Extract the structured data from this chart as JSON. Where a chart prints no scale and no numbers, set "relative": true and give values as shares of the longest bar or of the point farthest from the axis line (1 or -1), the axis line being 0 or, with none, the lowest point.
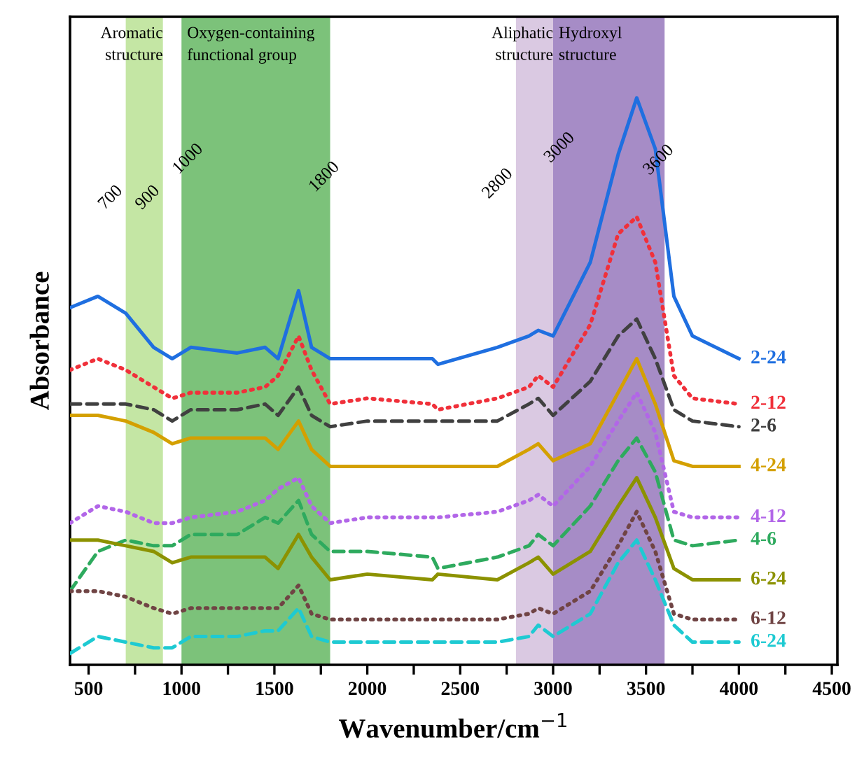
{
  "chart_data": {
    "type": "line",
    "relative": true,
    "xlabel": "Wavenumber/cm$^{−1}$",
    "ylabel": "Absorbance",
    "xlim": [
      400,
      4530
    ],
    "xticks": [
      500,
      {
        "value": 750,
        "label": null
      },
      1000,
      {
        "value": 1250,
        "label": null
      },
      1500,
      {
        "value": 1750,
        "label": null
      },
      2000,
      {
        "value": 2250,
        "label": null
      },
      2500,
      {
        "value": 2750,
        "label": null
      },
      3000,
      {
        "value": 3250,
        "label": null
      },
      3500,
      {
        "value": 3750,
        "label": null
      },
      4000,
      {
        "value": 4250,
        "label": null
      },
      4500
    ],
    "tick_labels": "x",
    "grid": false,
    "legend": false,
    "x": [
      400,
      550,
      700,
      850,
      950,
      1050,
      1300,
      1450,
      1520,
      1630,
      1700,
      1800,
      2000,
      2350,
      2380,
      2700,
      2870,
      2920,
      3000,
      3200,
      3350,
      3450,
      3550,
      3650,
      3750,
      4000
    ],
    "series": [
      {
        "name": "2-24",
        "color": "#1f6fe0",
        "line_style": "solid",
        "values": [
          0.63,
          0.65,
          0.62,
          0.56,
          0.54,
          0.56,
          0.55,
          0.56,
          0.54,
          0.66,
          0.56,
          0.54,
          0.54,
          0.54,
          0.53,
          0.56,
          0.58,
          0.59,
          0.58,
          0.71,
          0.9,
          1.0,
          0.91,
          0.65,
          0.58,
          0.54
        ]
      },
      {
        "name": "2-12",
        "color": "#f0303a",
        "line_style": "dotted",
        "values": [
          0.52,
          0.54,
          0.52,
          0.49,
          0.47,
          0.48,
          0.48,
          0.49,
          0.51,
          0.58,
          0.52,
          0.46,
          0.47,
          0.46,
          0.45,
          0.47,
          0.49,
          0.51,
          0.49,
          0.6,
          0.76,
          0.79,
          0.71,
          0.51,
          0.47,
          0.46
        ]
      },
      {
        "name": "2-6",
        "color": "#404040",
        "line_style": "dashed",
        "values": [
          0.46,
          0.46,
          0.46,
          0.45,
          0.43,
          0.45,
          0.45,
          0.46,
          0.44,
          0.49,
          0.44,
          0.42,
          0.43,
          0.43,
          0.43,
          0.43,
          0.46,
          0.47,
          0.44,
          0.5,
          0.58,
          0.61,
          0.54,
          0.45,
          0.43,
          0.42
        ]
      },
      {
        "name": "4-24",
        "color": "#d4a000",
        "line_style": "solid",
        "values": [
          0.44,
          0.44,
          0.43,
          0.41,
          0.39,
          0.4,
          0.4,
          0.4,
          0.38,
          0.43,
          0.38,
          0.35,
          0.35,
          0.35,
          0.35,
          0.35,
          0.38,
          0.39,
          0.36,
          0.39,
          0.48,
          0.54,
          0.46,
          0.36,
          0.35,
          0.35
        ]
      },
      {
        "name": "4-12",
        "color": "#b266e8",
        "line_style": "dotted",
        "values": [
          0.25,
          0.28,
          0.27,
          0.25,
          0.25,
          0.26,
          0.27,
          0.29,
          0.31,
          0.33,
          0.28,
          0.25,
          0.26,
          0.26,
          0.26,
          0.27,
          0.29,
          0.3,
          0.28,
          0.35,
          0.43,
          0.48,
          0.41,
          0.27,
          0.26,
          0.26
        ]
      },
      {
        "name": "4-6",
        "color": "#2eaa5e",
        "line_style": "dashed",
        "values": [
          0.13,
          0.2,
          0.22,
          0.21,
          0.21,
          0.23,
          0.23,
          0.26,
          0.25,
          0.29,
          0.23,
          0.2,
          0.2,
          0.19,
          0.17,
          0.19,
          0.21,
          0.23,
          0.21,
          0.28,
          0.36,
          0.4,
          0.34,
          0.22,
          0.21,
          0.22
        ]
      },
      {
        "name": "6-24",
        "color": "#8c9200",
        "line_style": "solid",
        "values": [
          0.22,
          0.22,
          0.21,
          0.2,
          0.18,
          0.19,
          0.19,
          0.19,
          0.17,
          0.23,
          0.19,
          0.15,
          0.16,
          0.15,
          0.16,
          0.15,
          0.18,
          0.19,
          0.16,
          0.2,
          0.28,
          0.33,
          0.26,
          0.17,
          0.15,
          0.15
        ]
      },
      {
        "name": "6-12",
        "color": "#704444",
        "line_style": "dotted",
        "values": [
          0.13,
          0.13,
          0.12,
          0.1,
          0.09,
          0.1,
          0.1,
          0.1,
          0.1,
          0.14,
          0.09,
          0.08,
          0.08,
          0.08,
          0.08,
          0.08,
          0.09,
          0.1,
          0.09,
          0.13,
          0.21,
          0.27,
          0.2,
          0.09,
          0.08,
          0.08
        ]
      },
      {
        "name": "6-24",
        "color": "#1ecad2",
        "line_style": "dashed",
        "values": [
          0.02,
          0.05,
          0.04,
          0.03,
          0.03,
          0.05,
          0.05,
          0.06,
          0.06,
          0.1,
          0.05,
          0.04,
          0.04,
          0.04,
          0.04,
          0.04,
          0.05,
          0.07,
          0.05,
          0.09,
          0.18,
          0.22,
          0.15,
          0.07,
          0.04,
          0.04
        ]
      }
    ],
    "bands": [
      {
        "axis": "x",
        "from": 700,
        "to": 900,
        "label": "Aromatic structure",
        "color": "#c4e6a4"
      },
      {
        "axis": "x",
        "from": 1000,
        "to": 1800,
        "label": "Oxygen-containing functional group",
        "color": "#7cc27a"
      },
      {
        "axis": "x",
        "from": 2800,
        "to": 3000,
        "label": "Aliphatic structure",
        "color": "#dac9e2"
      },
      {
        "axis": "x",
        "from": 3000,
        "to": 3600,
        "label": "Hydroxyl structure",
        "color": "#a68cc6"
      }
    ],
    "annotations": [
      {
        "text": "700",
        "x": 700,
        "y": 0.83
      },
      {
        "text": "900",
        "x": 900,
        "y": 0.83
      },
      {
        "text": "1000",
        "x": 1000,
        "y": 0.86
      },
      {
        "text": "1800",
        "x": 1800,
        "y": 0.85
      },
      {
        "text": "2800",
        "x": 2800,
        "y": 0.86
      },
      {
        "text": "3000",
        "x": 3000,
        "y": 0.88
      },
      {
        "text": "3600",
        "x": 3600,
        "y": 0.88
      }
    ]
  }
}
